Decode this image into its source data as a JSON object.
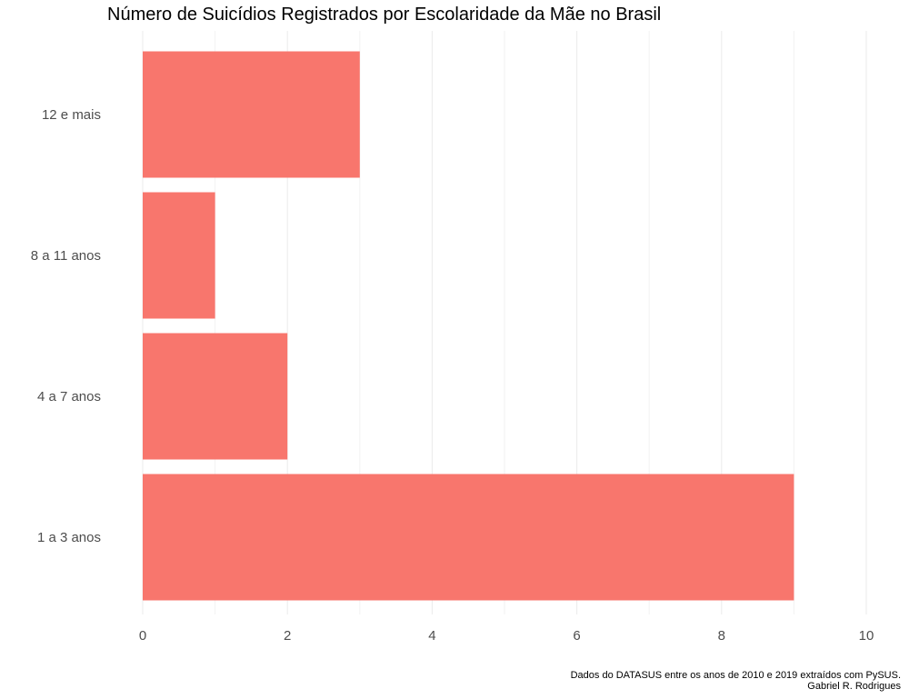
{
  "chart_data": {
    "type": "bar",
    "orientation": "horizontal",
    "title": "Número de Suicídios Registrados por Escolaridade da Mãe no Brasil",
    "categories": [
      "1 a 3 anos",
      "4 a 7 anos",
      "8 a 11 anos",
      "12 e mais"
    ],
    "values": [
      9,
      2,
      1,
      3
    ],
    "xlabel": "",
    "ylabel": "",
    "xlim": [
      0,
      10
    ],
    "xticks": [
      0,
      2,
      4,
      6,
      8,
      10
    ],
    "grid": true,
    "bar_color": "#F8766D"
  },
  "caption": {
    "line1": "Dados do DATASUS entre os anos de 2010 e 2019 extraídos com PySUS.",
    "line2": "Gabriel R. Rodrigues"
  }
}
